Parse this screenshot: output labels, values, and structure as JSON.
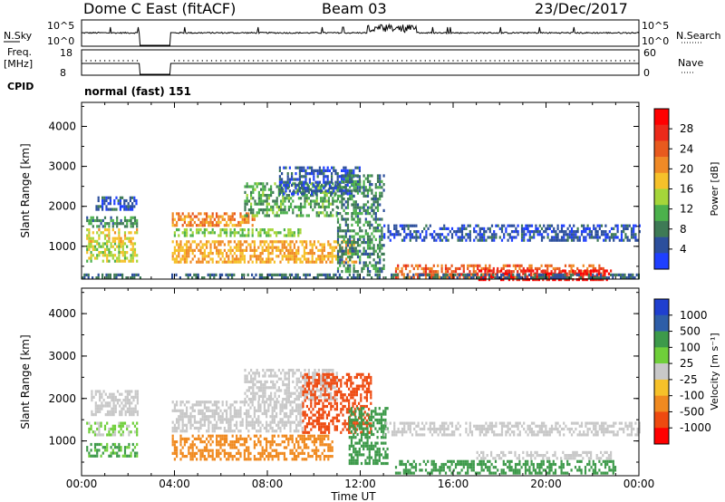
{
  "header": {
    "station": "Dome C East (fitACF)",
    "beam": "Beam 03",
    "date": "23/Dec/2017"
  },
  "top_panels": {
    "nsky_label": "N.Sky",
    "nsky_ticks": [
      "10^5",
      "10^0"
    ],
    "nsearch_label": "N.Search",
    "nsearch_ticks": [
      "10^5",
      "10^0"
    ],
    "freq_label_1": "Freq.",
    "freq_label_2": "[MHz]",
    "freq_ticks": [
      "18",
      "8"
    ],
    "nave_label": "Nave",
    "nave_ticks": [
      "60",
      "0"
    ],
    "cpid_label": "CPID",
    "cpid_text": "normal (fast) 151"
  },
  "chart_data": [
    {
      "type": "heatmap",
      "name": "power",
      "ylabel": "Slant Range [km]",
      "xlabel": "",
      "yticks": [
        "1000",
        "2000",
        "3000",
        "4000"
      ],
      "ylim": [
        180,
        4600
      ],
      "x_hours": [
        0,
        24
      ],
      "xticks_hours": [
        0,
        4,
        8,
        12,
        16,
        20,
        24
      ],
      "colorbar_label": "Power [dB]",
      "colorbar_ticks": [
        "4",
        "8",
        "12",
        "16",
        "20",
        "24",
        "28"
      ],
      "colorbar_colors": [
        "#1f3fff",
        "#2c4f9c",
        "#3e7a55",
        "#4cb14c",
        "#a5d63a",
        "#f6c12a",
        "#f08a26",
        "#e85a1e",
        "#ec2a1a",
        "#ff0000"
      ],
      "data_gaps_hours": [
        [
          2.5,
          3.8
        ]
      ],
      "regions": [
        {
          "t0": 0.2,
          "t1": 2.4,
          "r0": 650,
          "r1": 1100,
          "val": 16
        },
        {
          "t0": 0.2,
          "t1": 2.4,
          "r0": 1150,
          "r1": 1450,
          "val": 18
        },
        {
          "t0": 0.2,
          "t1": 2.4,
          "r0": 1500,
          "r1": 1750,
          "val": 10
        },
        {
          "t0": 0.6,
          "t1": 2.4,
          "r0": 1900,
          "r1": 2250,
          "val": 6
        },
        {
          "t0": 3.8,
          "t1": 11.8,
          "r0": 600,
          "r1": 1150,
          "val": 20
        },
        {
          "t0": 3.8,
          "t1": 9.5,
          "r0": 1250,
          "r1": 1450,
          "val": 14
        },
        {
          "t0": 3.8,
          "t1": 7.5,
          "r0": 1500,
          "r1": 1850,
          "val": 22
        },
        {
          "t0": 7.0,
          "t1": 11.0,
          "r0": 1800,
          "r1": 2600,
          "val": 12
        },
        {
          "t0": 8.5,
          "t1": 12.0,
          "r0": 2300,
          "r1": 3000,
          "val": 6
        },
        {
          "t0": 11.0,
          "t1": 13.0,
          "r0": 400,
          "r1": 2800,
          "val": 10
        },
        {
          "t0": 13.0,
          "t1": 24.0,
          "r0": 1150,
          "r1": 1550,
          "val": 6
        },
        {
          "t0": 13.5,
          "t1": 22.5,
          "r0": 220,
          "r1": 550,
          "val": 24
        },
        {
          "t0": 17.0,
          "t1": 22.8,
          "r0": 200,
          "r1": 420,
          "val": 29
        },
        {
          "t0": 0.0,
          "t1": 24.0,
          "r0": 180,
          "r1": 320,
          "val": 8
        }
      ]
    },
    {
      "type": "heatmap",
      "name": "velocity",
      "ylabel": "Slant Range [km]",
      "xlabel": "Time UT",
      "yticks": [
        "1000",
        "2000",
        "3000",
        "4000"
      ],
      "ylim": [
        180,
        4600
      ],
      "x_hours": [
        0,
        24
      ],
      "xticks_hours": [
        0,
        4,
        8,
        12,
        16,
        20,
        24
      ],
      "xtick_labels": [
        "00:00",
        "04:00",
        "08:00",
        "12:00",
        "16:00",
        "20:00",
        "00:00"
      ],
      "colorbar_label": "Velocity [m s⁻¹]",
      "colorbar_ticks": [
        "-1000",
        "-500",
        "-100",
        "-25",
        "25",
        "100",
        "500",
        "1000"
      ],
      "colorbar_colors": [
        "#ff0000",
        "#ee4a10",
        "#f08a20",
        "#f6c12a",
        "#c8c8c8",
        "#6fcf3a",
        "#3d9a4a",
        "#2e5ea8",
        "#1f3fcf"
      ],
      "data_gaps_hours": [
        [
          2.5,
          3.8
        ]
      ],
      "regions": [
        {
          "t0": 0.2,
          "t1": 2.4,
          "r0": 650,
          "r1": 950,
          "val": 110
        },
        {
          "t0": 0.2,
          "t1": 2.4,
          "r0": 1150,
          "r1": 1450,
          "val": 30
        },
        {
          "t0": 0.4,
          "t1": 2.4,
          "r0": 1600,
          "r1": 2200,
          "val": 0
        },
        {
          "t0": 3.8,
          "t1": 10.8,
          "r0": 550,
          "r1": 1150,
          "val": -150
        },
        {
          "t0": 3.8,
          "t1": 9.5,
          "r0": 1250,
          "r1": 1950,
          "val": 0
        },
        {
          "t0": 7.0,
          "t1": 11.0,
          "r0": 1950,
          "r1": 2700,
          "val": 0
        },
        {
          "t0": 9.5,
          "t1": 12.5,
          "r0": 1200,
          "r1": 2600,
          "val": -600
        },
        {
          "t0": 11.5,
          "t1": 13.2,
          "r0": 500,
          "r1": 1800,
          "val": 200
        },
        {
          "t0": 13.0,
          "t1": 24.0,
          "r0": 1150,
          "r1": 1450,
          "val": 0
        },
        {
          "t0": 13.5,
          "t1": 23.0,
          "r0": 220,
          "r1": 550,
          "val": 150
        },
        {
          "t0": 17.0,
          "t1": 22.8,
          "r0": 560,
          "r1": 760,
          "val": 0
        }
      ]
    }
  ]
}
